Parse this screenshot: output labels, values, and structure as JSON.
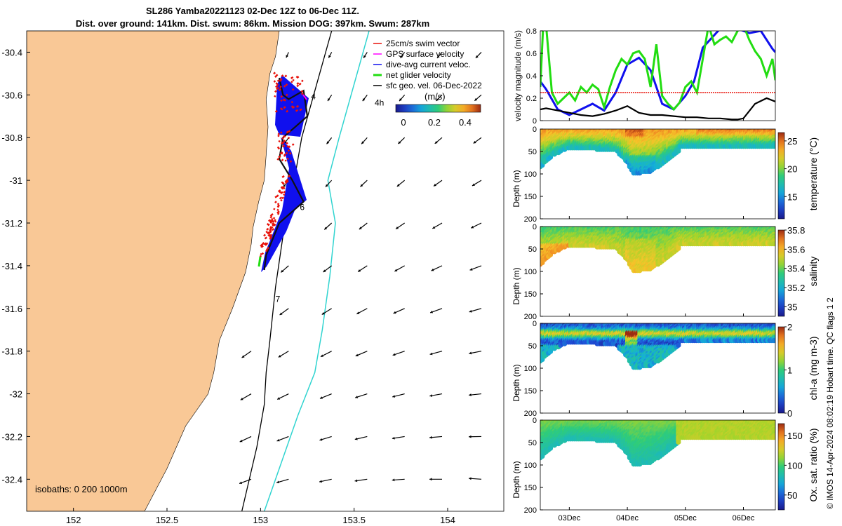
{
  "title_line1": "SL286 Yamba20221123 02-Dec 12Z to 06-Dec 11Z.",
  "title_line2": "Dist. over ground: 141km. Dist. swum: 86km. Mission DOG: 397km. Swum: 287km",
  "credit": "© IMOS 14-Apr-2024 08:02:19 Hobart time. QC flags 1  2",
  "colors": {
    "land": "#f9c896",
    "red": "#e8120a",
    "blue": "#1010ee",
    "green": "#22dd11",
    "black": "#000000",
    "cyan": "#30d4d0",
    "magenta": "#ff00ff"
  },
  "chart_data": [
    {
      "type": "map",
      "xlim": [
        151.75,
        154.3
      ],
      "ylim": [
        -32.55,
        -30.3
      ],
      "xticks": [
        "152",
        "152.5",
        "153",
        "153.5",
        "154"
      ],
      "xtick_values": [
        152,
        152.5,
        153,
        153.5,
        154
      ],
      "yticks": [
        "-30.4",
        "-30.6",
        "-30.8",
        "-31",
        "-31.2",
        "-31.4",
        "-31.6",
        "-31.8",
        "-32",
        "-32.2",
        "-32.4"
      ],
      "ytick_values": [
        -30.4,
        -30.6,
        -30.8,
        -31,
        -31.2,
        -31.4,
        -31.6,
        -31.8,
        -32,
        -32.2,
        -32.4
      ],
      "isobaths_label": "isobaths: 0   200  1000m",
      "legend": [
        {
          "label": "25cm/s swim vector",
          "color": "#e8120a"
        },
        {
          "label": "GPS surface velocity",
          "color": "#ff00ff"
        },
        {
          "label": "dive-avg current veloc.",
          "color": "#1010ee"
        },
        {
          "label": "net glider velocity",
          "color": "#22dd11"
        },
        {
          "label": "sfc geo. vel. 06-Dec-2022",
          "color": "#000000"
        }
      ],
      "colorbar": {
        "label": "(m/s)",
        "ticks": [
          "0",
          "0.2",
          "0.4"
        ],
        "tick_values": [
          0,
          0.2,
          0.4
        ],
        "range": [
          -0.05,
          0.5
        ]
      },
      "day_labels": [
        {
          "text": "4",
          "lon": 153.27,
          "lat": -30.62
        },
        {
          "text": "4h",
          "lon": 153.61,
          "lat": -30.65
        },
        {
          "text": "6",
          "lon": 153.21,
          "lat": -31.14
        },
        {
          "text": "7",
          "lon": 153.08,
          "lat": -31.57
        }
      ]
    },
    {
      "type": "line",
      "ylabel": "velocity magnitude (m/s)",
      "ylim": [
        0,
        0.8
      ],
      "yticks": [
        "0",
        "0.2",
        "0.4",
        "0.6",
        "0.8"
      ],
      "ytick_values": [
        0,
        0.2,
        0.4,
        0.6,
        0.8
      ],
      "xlim": [
        2.5,
        6.55
      ],
      "series": [
        {
          "name": "dive-avg current",
          "color": "#1010ee",
          "x": [
            2.5,
            2.6,
            2.8,
            3.0,
            3.2,
            3.4,
            3.6,
            3.8,
            4.0,
            4.2,
            4.4,
            4.6,
            4.8,
            5.0,
            5.15,
            5.3,
            5.6,
            5.9,
            6.1,
            6.3,
            6.5,
            6.55
          ],
          "y": [
            0.35,
            0.28,
            0.1,
            0.05,
            0.1,
            0.15,
            0.09,
            0.25,
            0.5,
            0.56,
            0.45,
            0.15,
            0.1,
            0.22,
            0.35,
            0.65,
            0.82,
            0.82,
            0.78,
            0.8,
            0.64,
            0.61
          ]
        },
        {
          "name": "net glider velocity",
          "color": "#22dd11",
          "x": [
            2.5,
            2.55,
            2.6,
            2.7,
            2.8,
            2.9,
            3.0,
            3.1,
            3.2,
            3.3,
            3.4,
            3.5,
            3.6,
            3.7,
            3.8,
            3.9,
            4.0,
            4.1,
            4.2,
            4.3,
            4.4,
            4.5,
            4.6,
            4.7,
            4.8,
            4.9,
            5.0,
            5.1,
            5.2,
            5.3,
            5.4,
            5.5,
            5.6,
            5.7,
            5.8,
            5.9,
            6.0,
            6.1,
            6.2,
            6.3,
            6.4,
            6.5,
            6.55
          ],
          "y": [
            0.3,
            0.85,
            0.85,
            0.25,
            0.15,
            0.2,
            0.25,
            0.18,
            0.3,
            0.25,
            0.32,
            0.28,
            0.12,
            0.3,
            0.45,
            0.55,
            0.5,
            0.6,
            0.62,
            0.55,
            0.3,
            0.68,
            0.22,
            0.15,
            0.1,
            0.16,
            0.3,
            0.35,
            0.25,
            0.55,
            0.85,
            0.68,
            0.72,
            0.75,
            0.7,
            0.8,
            0.85,
            0.72,
            0.62,
            0.55,
            0.4,
            0.55,
            0.36
          ]
        },
        {
          "name": "25cm/s swim vector",
          "color": "#e8120a",
          "x": [
            2.5,
            6.55
          ],
          "y": [
            0.25,
            0.25
          ]
        },
        {
          "name": "sfc geo. vel.",
          "color": "#000000",
          "x": [
            2.5,
            2.6,
            2.8,
            3.0,
            3.2,
            3.4,
            3.6,
            3.8,
            4.0,
            4.2,
            4.4,
            4.6,
            4.8,
            5.0,
            5.2,
            5.4,
            5.6,
            5.8,
            5.9,
            6.0,
            6.2,
            6.4,
            6.55
          ],
          "y": [
            0.1,
            0.11,
            0.09,
            0.07,
            0.05,
            0.04,
            0.06,
            0.09,
            0.13,
            0.07,
            0.05,
            0.05,
            0.04,
            0.03,
            0.03,
            0.02,
            0.02,
            0.01,
            0.01,
            0.02,
            0.15,
            0.2,
            0.17
          ]
        }
      ]
    },
    {
      "type": "heatmap",
      "variable": "temperature",
      "ylabel": "Depth (m)",
      "cbar_label": "temperature (°C)",
      "ylim": [
        0,
        200
      ],
      "yticks": [
        "0",
        "50",
        "100",
        "150",
        "200"
      ],
      "ytick_values": [
        0,
        50,
        100,
        150,
        200
      ],
      "clim": [
        11,
        26.5
      ],
      "cticks": [
        "15",
        "20",
        "25"
      ],
      "ctick_values": [
        15,
        20,
        25
      ],
      "surface_value": 24,
      "deep_value": 16.5,
      "bottom_depth_profile": {
        "x": [
          2.5,
          2.7,
          3.0,
          3.4,
          3.8,
          4.0,
          4.1,
          4.4,
          4.7,
          4.88,
          4.89,
          6.55
        ],
        "depth": [
          85,
          60,
          42,
          45,
          48,
          75,
          100,
          95,
          70,
          50,
          40,
          40
        ]
      }
    },
    {
      "type": "heatmap",
      "variable": "salinity",
      "ylabel": "Depth (m)",
      "cbar_label": "salinity",
      "ylim": [
        0,
        200
      ],
      "yticks": [
        "0",
        "50",
        "100",
        "150",
        "200"
      ],
      "ytick_values": [
        0,
        50,
        100,
        150,
        200
      ],
      "clim": [
        34.9,
        35.8
      ],
      "cticks": [
        "35",
        "35.2",
        "35.4",
        "35.6",
        "35.8"
      ],
      "ctick_values": [
        35,
        35.2,
        35.4,
        35.6,
        35.8
      ],
      "surface_value": 35.35,
      "deep_value": 35.52,
      "bottom_depth_profile": {
        "x": [
          2.5,
          2.7,
          3.0,
          3.4,
          3.8,
          4.0,
          4.1,
          4.4,
          4.7,
          4.88,
          4.89,
          6.55
        ],
        "depth": [
          85,
          60,
          42,
          45,
          48,
          75,
          100,
          95,
          70,
          50,
          40,
          40
        ]
      }
    },
    {
      "type": "heatmap",
      "variable": "chl-a",
      "ylabel": "Depth (m)",
      "cbar_label": "chl-a (mg m-3)",
      "ylim": [
        0,
        200
      ],
      "yticks": [
        "0",
        "50",
        "100",
        "150",
        "200"
      ],
      "ytick_values": [
        0,
        50,
        100,
        150,
        200
      ],
      "clim": [
        0,
        2
      ],
      "cticks": [
        "0",
        "1",
        "2"
      ],
      "ctick_values": [
        0,
        1,
        2
      ],
      "surface_value": 0.45,
      "deep_value": 0.75,
      "bottom_depth_profile": {
        "x": [
          2.5,
          2.7,
          3.0,
          3.4,
          3.8,
          4.0,
          4.1,
          4.4,
          4.7,
          4.88,
          4.89,
          6.55
        ],
        "depth": [
          85,
          60,
          42,
          45,
          48,
          75,
          100,
          95,
          70,
          50,
          40,
          40
        ]
      }
    },
    {
      "type": "heatmap",
      "variable": "oxygen saturation",
      "ylabel": "Depth (m)",
      "cbar_label": "Ox. sat. ratio (%)",
      "ylim": [
        0,
        200
      ],
      "yticks": [
        "0",
        "50",
        "100",
        "150",
        "200"
      ],
      "ytick_values": [
        0,
        50,
        100,
        150,
        200
      ],
      "clim": [
        25,
        170
      ],
      "cticks": [
        "50",
        "100",
        "150"
      ],
      "ctick_values": [
        50,
        100,
        150
      ],
      "surface_value": 110,
      "deep_value": 82,
      "bottom_depth_profile": {
        "x": [
          2.5,
          2.7,
          3.0,
          3.4,
          3.8,
          4.0,
          4.1,
          4.4,
          4.7,
          4.88,
          4.89,
          6.55
        ],
        "depth": [
          85,
          60,
          42,
          45,
          48,
          75,
          100,
          95,
          70,
          50,
          40,
          40
        ]
      }
    }
  ],
  "time_axis": {
    "xlim": [
      2.5,
      6.55
    ],
    "ticks": [
      "03Dec",
      "04Dec",
      "05Dec",
      "06Dec"
    ],
    "tick_values": [
      3,
      4,
      5,
      6
    ]
  }
}
